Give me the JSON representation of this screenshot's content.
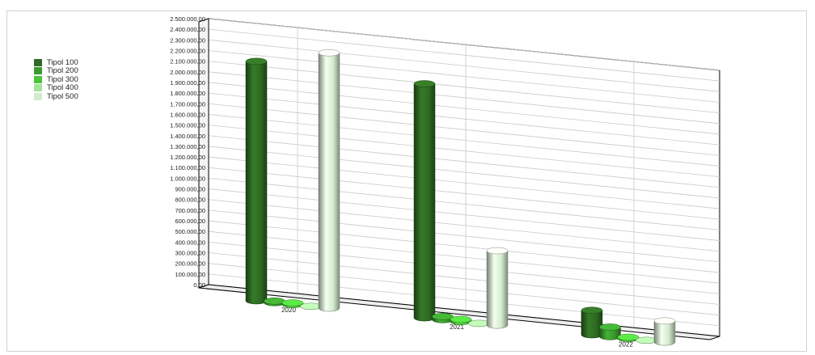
{
  "chart_data": {
    "type": "bar",
    "title": "",
    "xlabel": "",
    "ylabel": "",
    "categories": [
      "2020",
      "2021",
      "2022"
    ],
    "ylim": [
      0,
      2500000
    ],
    "y_ticks": [
      "0,00",
      "100.000,00",
      "200.000,00",
      "300.000,00",
      "400.000,00",
      "500.000,00",
      "600.000,00",
      "700.000,00",
      "800.000,00",
      "900.000,00",
      "1.000.000,00",
      "1.100.000,00",
      "1.200.000,00",
      "1.300.000,00",
      "1.400.000,00",
      "1.500.000,00",
      "1.600.000,00",
      "1.700.000,00",
      "1.800.000,00",
      "1.900.000,00",
      "2.000.000,00",
      "2.100.000,00",
      "2.200.000,00",
      "2.300.000,00",
      "2.400.000,00",
      "2.500.000,00"
    ],
    "series": [
      {
        "name": "Tipol 100",
        "color": "#2e6b22",
        "values": [
          2250000,
          2200000,
          230000
        ]
      },
      {
        "name": "Tipol 200",
        "color": "#3a9a2e",
        "values": [
          15000,
          30000,
          90000
        ]
      },
      {
        "name": "Tipol 300",
        "color": "#4cc43a",
        "values": [
          15000,
          20000,
          12000
        ]
      },
      {
        "name": "Tipol 400",
        "color": "#a3e39a",
        "values": [
          0,
          0,
          0
        ]
      },
      {
        "name": "Tipol 500",
        "color": "#d4ead0",
        "values": [
          2400000,
          700000,
          200000
        ]
      }
    ],
    "legend_position": "left",
    "grid": true,
    "3d": true
  }
}
